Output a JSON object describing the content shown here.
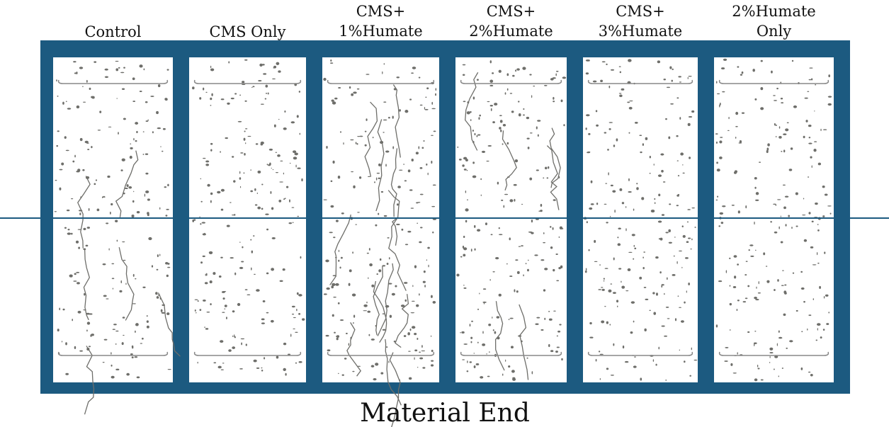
{
  "panels": [
    {
      "label": [
        "Control"
      ]
    },
    {
      "label": [
        "CMS Only"
      ]
    },
    {
      "label": [
        "CMS+",
        "1%Humate"
      ]
    },
    {
      "label": [
        "CMS+",
        "2%Humate"
      ]
    },
    {
      "label": [
        "CMS+",
        "3%Humate"
      ]
    },
    {
      "label": [
        "2%Humate",
        "Only"
      ]
    }
  ],
  "caption": "Material End"
}
